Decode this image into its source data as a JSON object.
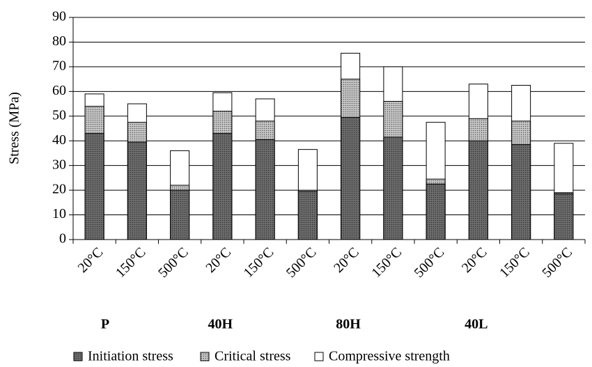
{
  "chart_data": {
    "type": "bar",
    "y_label": "Stress (MPa)",
    "categories": [
      "20°C",
      "150°C",
      "500°C",
      "20°C",
      "150°C",
      "500°C",
      "20°C",
      "150°C",
      "500°C",
      "20°C",
      "150°C",
      "500°C"
    ],
    "groups": [
      "P",
      "40H",
      "80H",
      "40L"
    ],
    "series": [
      {
        "name": "Initiation stress",
        "color": "#6e6e6e",
        "pattern": true,
        "values": [
          43,
          39.5,
          20,
          43,
          40.5,
          19.5,
          49.5,
          41.5,
          22.5,
          40,
          38.5,
          18.5
        ]
      },
      {
        "name": "Critical stress",
        "color": "#c8c8c8",
        "pattern": true,
        "values": [
          54,
          47.5,
          22,
          52,
          48,
          20,
          65,
          56,
          24.5,
          49,
          48,
          19
        ]
      },
      {
        "name": "Compressive strength",
        "color": "#ffffff",
        "pattern": false,
        "values": [
          59,
          55,
          36,
          59.5,
          57,
          36.5,
          75.5,
          70,
          47.5,
          63,
          62.5,
          39
        ]
      }
    ],
    "ylim": [
      0,
      90
    ],
    "yticks": [
      0,
      10,
      20,
      30,
      40,
      50,
      60,
      70,
      80,
      90
    ],
    "grid": true
  }
}
